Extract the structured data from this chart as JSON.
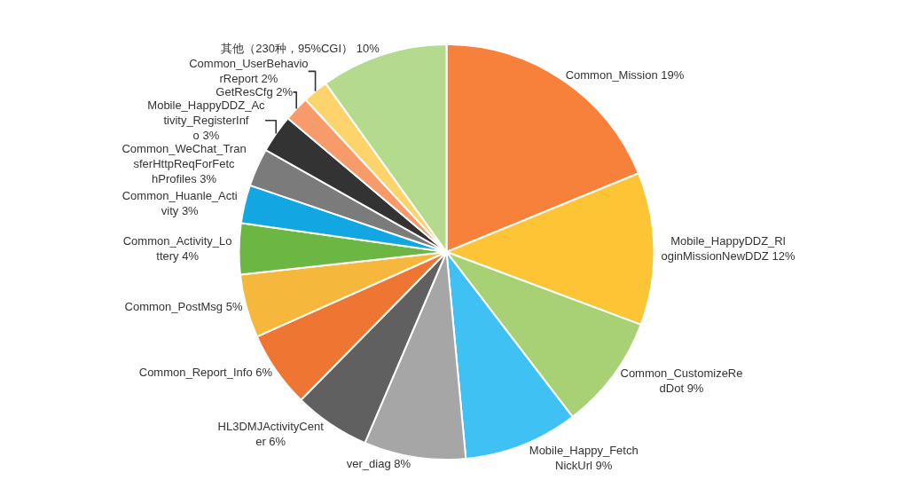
{
  "chart_data": {
    "type": "pie",
    "categories": [
      "Common_Mission",
      "Mobile_HappyDDZ_RloginMissionNewDDZ",
      "Common_CustomizeRedDot",
      "Mobile_Happy_FetchNickUrl",
      "ver_diag",
      "HL3DMJActivityCenter",
      "Common_Report_Info",
      "Common_PostMsg",
      "Common_Activity_Lottery",
      "Common_Huanle_Activity",
      "Common_WeChat_TransferHttpReqForFetchProfiles",
      "Mobile_HappyDDZ_Activity_RegisterInfo",
      "GetResCfg",
      "Common_UserBehaviorReport",
      "其他（230种，95%CGI）"
    ],
    "values": [
      19,
      12,
      9,
      9,
      8,
      6,
      6,
      5,
      4,
      3,
      3,
      3,
      2,
      2,
      10
    ],
    "value_labels": [
      "19%",
      "12%",
      "9%",
      "9%",
      "8%",
      "6%",
      "6%",
      "5%",
      "4%",
      "3%",
      "3%",
      "3%",
      "2%",
      "2%",
      "10%"
    ],
    "colors": [
      "#f7813a",
      "#fdc435",
      "#a8d176",
      "#3fc2f3",
      "#a6a6a6",
      "#606060",
      "#ee7532",
      "#f5b73c",
      "#6cb744",
      "#12a7e3",
      "#7b7b7b",
      "#333333",
      "#f79b6b",
      "#fdd36c",
      "#b4db8d"
    ],
    "legend": false
  }
}
